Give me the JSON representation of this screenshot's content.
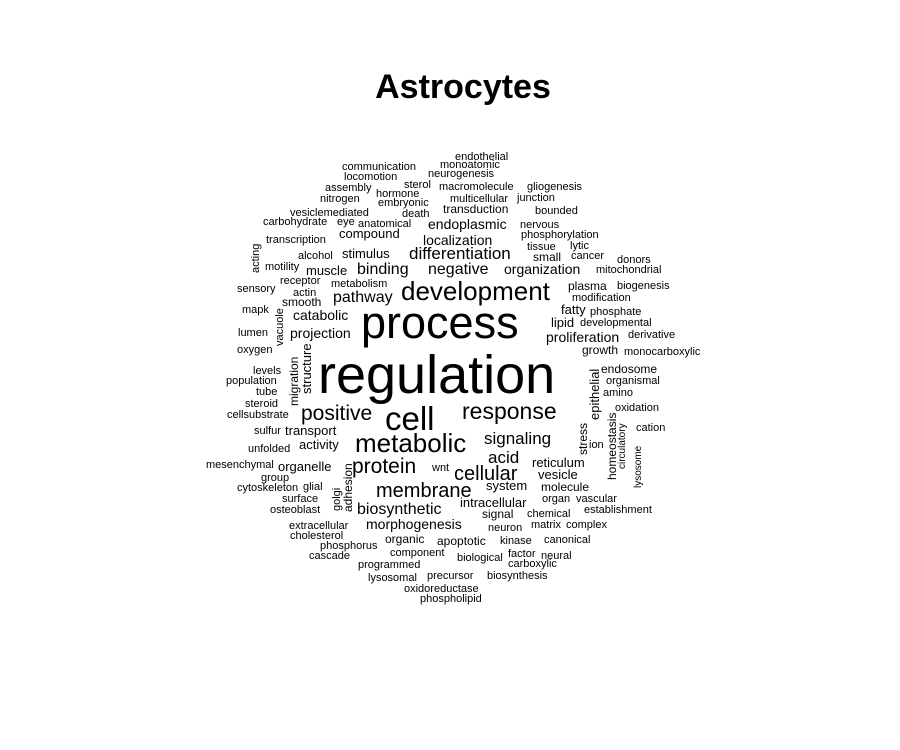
{
  "chart_data": {
    "type": "wordcloud",
    "title": "Astrocytes",
    "color": "#000000",
    "words": [
      {
        "text": "regulation",
        "weight": 100
      },
      {
        "text": "process",
        "weight": 78
      },
      {
        "text": "cell",
        "weight": 60
      },
      {
        "text": "development",
        "weight": 50
      },
      {
        "text": "metabolic",
        "weight": 48
      },
      {
        "text": "response",
        "weight": 44
      },
      {
        "text": "positive",
        "weight": 42
      },
      {
        "text": "protein",
        "weight": 40
      },
      {
        "text": "membrane",
        "weight": 38
      },
      {
        "text": "cellular",
        "weight": 38
      },
      {
        "text": "signaling",
        "weight": 32
      },
      {
        "text": "acid",
        "weight": 32
      },
      {
        "text": "differentiation",
        "weight": 32
      },
      {
        "text": "negative",
        "weight": 30
      },
      {
        "text": "binding",
        "weight": 30
      },
      {
        "text": "pathway",
        "weight": 30
      },
      {
        "text": "biosynthetic",
        "weight": 30
      },
      {
        "text": "morphogenesis",
        "weight": 28
      },
      {
        "text": "organization",
        "weight": 27
      },
      {
        "text": "localization",
        "weight": 27
      },
      {
        "text": "catabolic",
        "weight": 26
      },
      {
        "text": "proliferation",
        "weight": 26
      },
      {
        "text": "endoplasmic",
        "weight": 26
      },
      {
        "text": "projection",
        "weight": 25
      },
      {
        "text": "transport",
        "weight": 25
      },
      {
        "text": "reticulum",
        "weight": 25
      },
      {
        "text": "activity",
        "weight": 25
      },
      {
        "text": "system",
        "weight": 25
      },
      {
        "text": "intracellular",
        "weight": 25
      },
      {
        "text": "vesicle",
        "weight": 24
      },
      {
        "text": "stimulus",
        "weight": 24
      },
      {
        "text": "compound",
        "weight": 23
      },
      {
        "text": "structure",
        "weight": 23
      },
      {
        "text": "organelle",
        "weight": 23
      },
      {
        "text": "lipid",
        "weight": 23
      },
      {
        "text": "epithelial",
        "weight": 23
      },
      {
        "text": "fatty",
        "weight": 23
      },
      {
        "text": "muscle",
        "weight": 23
      },
      {
        "text": "plasma",
        "weight": 22
      },
      {
        "text": "transduction",
        "weight": 22
      },
      {
        "text": "smooth",
        "weight": 22
      },
      {
        "text": "signal",
        "weight": 21
      },
      {
        "text": "molecule",
        "weight": 21
      },
      {
        "text": "small",
        "weight": 21
      },
      {
        "text": "stress",
        "weight": 21
      },
      {
        "text": "homeostasis",
        "weight": 21
      },
      {
        "text": "migration",
        "weight": 21
      },
      {
        "text": "adhesion",
        "weight": 21
      },
      {
        "text": "growth",
        "weight": 20
      },
      {
        "text": "endosome",
        "weight": 20
      },
      {
        "text": "apoptotic",
        "weight": 20
      },
      {
        "text": "organic",
        "weight": 20
      },
      {
        "text": "component",
        "weight": 20
      },
      {
        "text": "neuron",
        "weight": 20
      },
      {
        "text": "chemical",
        "weight": 20
      },
      {
        "text": "kinase",
        "weight": 20
      },
      {
        "text": "canonical",
        "weight": 19
      },
      {
        "text": "phosphorylation",
        "weight": 19
      },
      {
        "text": "developmental",
        "weight": 19
      },
      {
        "text": "phosphate",
        "weight": 19
      },
      {
        "text": "modification",
        "weight": 19
      },
      {
        "text": "organismal",
        "weight": 19
      },
      {
        "text": "amino",
        "weight": 19
      },
      {
        "text": "oxidation",
        "weight": 19
      },
      {
        "text": "nervous",
        "weight": 19
      },
      {
        "text": "metabolism",
        "weight": 19
      },
      {
        "text": "receptor",
        "weight": 19
      },
      {
        "text": "actin",
        "weight": 19
      },
      {
        "text": "lumen",
        "weight": 19
      },
      {
        "text": "oxygen",
        "weight": 19
      },
      {
        "text": "factor",
        "weight": 19
      },
      {
        "text": "biological",
        "weight": 19
      },
      {
        "text": "precursor",
        "weight": 19
      },
      {
        "text": "biosynthesis",
        "weight": 19
      },
      {
        "text": "matrix",
        "weight": 19
      },
      {
        "text": "complex",
        "weight": 19
      },
      {
        "text": "establishment",
        "weight": 18
      },
      {
        "text": "organ",
        "weight": 18
      },
      {
        "text": "vascular",
        "weight": 18
      },
      {
        "text": "extracellular",
        "weight": 18
      },
      {
        "text": "cholesterol",
        "weight": 18
      },
      {
        "text": "phosphorus",
        "weight": 18
      },
      {
        "text": "cascade",
        "weight": 18
      },
      {
        "text": "programmed",
        "weight": 18
      },
      {
        "text": "lysosomal",
        "weight": 18
      },
      {
        "text": "oxidoreductase",
        "weight": 18
      },
      {
        "text": "phospholipid",
        "weight": 18
      },
      {
        "text": "neural",
        "weight": 18
      },
      {
        "text": "carboxylic",
        "weight": 18
      },
      {
        "text": "wnt",
        "weight": 18
      },
      {
        "text": "glial",
        "weight": 18
      },
      {
        "text": "surface",
        "weight": 18
      },
      {
        "text": "osteoblast",
        "weight": 18
      },
      {
        "text": "cytoskeleton",
        "weight": 18
      },
      {
        "text": "group",
        "weight": 18
      },
      {
        "text": "mesenchymal",
        "weight": 18
      },
      {
        "text": "unfolded",
        "weight": 18
      },
      {
        "text": "sulfur",
        "weight": 18
      },
      {
        "text": "cellsubstrate",
        "weight": 18
      },
      {
        "text": "steroid",
        "weight": 18
      },
      {
        "text": "tube",
        "weight": 18
      },
      {
        "text": "population",
        "weight": 18
      },
      {
        "text": "levels",
        "weight": 18
      },
      {
        "text": "mapk",
        "weight": 18
      },
      {
        "text": "sensory",
        "weight": 18
      },
      {
        "text": "motility",
        "weight": 18
      },
      {
        "text": "alcohol",
        "weight": 18
      },
      {
        "text": "transcription",
        "weight": 18
      },
      {
        "text": "carbohydrate",
        "weight": 18
      },
      {
        "text": "eye",
        "weight": 18
      },
      {
        "text": "anatomical",
        "weight": 18
      },
      {
        "text": "vesiclemediated",
        "weight": 18
      },
      {
        "text": "death",
        "weight": 18
      },
      {
        "text": "nitrogen",
        "weight": 18
      },
      {
        "text": "embryonic",
        "weight": 18
      },
      {
        "text": "assembly",
        "weight": 18
      },
      {
        "text": "hormone",
        "weight": 18
      },
      {
        "text": "sterol",
        "weight": 18
      },
      {
        "text": "locomotion",
        "weight": 18
      },
      {
        "text": "communication",
        "weight": 18
      },
      {
        "text": "monoatomic",
        "weight": 18
      },
      {
        "text": "endothelial",
        "weight": 18
      },
      {
        "text": "neurogenesis",
        "weight": 18
      },
      {
        "text": "macromolecule",
        "weight": 18
      },
      {
        "text": "gliogenesis",
        "weight": 18
      },
      {
        "text": "multicellular",
        "weight": 18
      },
      {
        "text": "junction",
        "weight": 18
      },
      {
        "text": "bounded",
        "weight": 18
      },
      {
        "text": "tissue",
        "weight": 18
      },
      {
        "text": "lytic",
        "weight": 18
      },
      {
        "text": "cancer",
        "weight": 18
      },
      {
        "text": "donors",
        "weight": 18
      },
      {
        "text": "mitochondrial",
        "weight": 18
      },
      {
        "text": "biogenesis",
        "weight": 18
      },
      {
        "text": "derivative",
        "weight": 18
      },
      {
        "text": "monocarboxylic",
        "weight": 18
      },
      {
        "text": "cation",
        "weight": 18
      },
      {
        "text": "circulatory",
        "weight": 17
      },
      {
        "text": "lysosome",
        "weight": 17
      },
      {
        "text": "ion",
        "weight": 18
      },
      {
        "text": "golgi",
        "weight": 18
      },
      {
        "text": "vacuole",
        "weight": 18
      },
      {
        "text": "acting",
        "weight": 18
      }
    ]
  }
}
